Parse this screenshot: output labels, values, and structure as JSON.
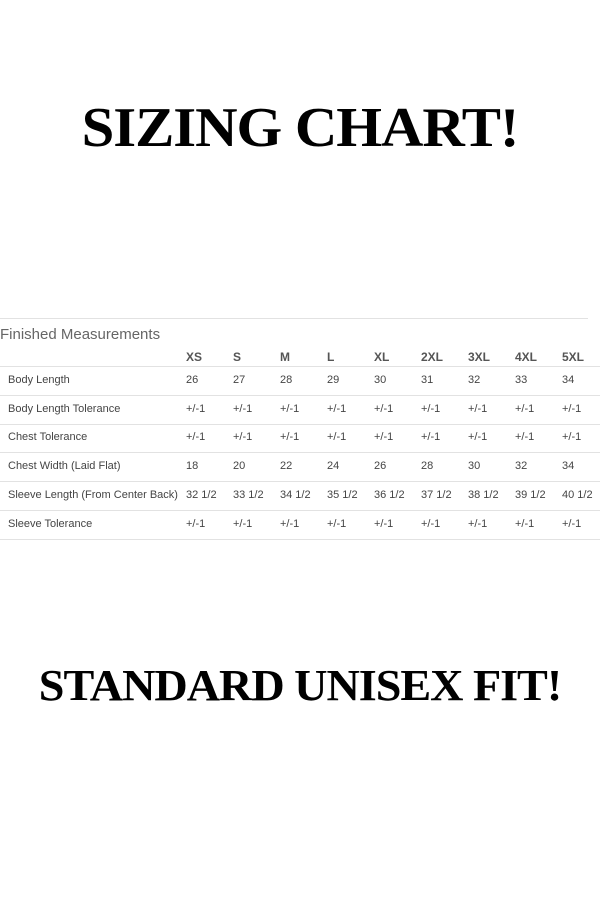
{
  "header": {
    "title": "SIZING CHART!"
  },
  "table": {
    "caption": "Finished Measurements",
    "columns": [
      "XS",
      "S",
      "M",
      "L",
      "XL",
      "2XL",
      "3XL",
      "4XL",
      "5XL"
    ],
    "rows": [
      {
        "label": "Body Length",
        "cells": [
          "26",
          "27",
          "28",
          "29",
          "30",
          "31",
          "32",
          "33",
          "34"
        ]
      },
      {
        "label": "Body Length Tolerance",
        "cells": [
          "+/-1",
          "+/-1",
          "+/-1",
          "+/-1",
          "+/-1",
          "+/-1",
          "+/-1",
          "+/-1",
          "+/-1"
        ]
      },
      {
        "label": "Chest Tolerance",
        "cells": [
          "+/-1",
          "+/-1",
          "+/-1",
          "+/-1",
          "+/-1",
          "+/-1",
          "+/-1",
          "+/-1",
          "+/-1"
        ]
      },
      {
        "label": "Chest Width (Laid Flat)",
        "cells": [
          "18",
          "20",
          "22",
          "24",
          "26",
          "28",
          "30",
          "32",
          "34"
        ]
      },
      {
        "label": "Sleeve Length (From Center Back)",
        "cells": [
          "32 1/2",
          "33 1/2",
          "34 1/2",
          "35 1/2",
          "36 1/2",
          "37 1/2",
          "38 1/2",
          "39 1/2",
          "40 1/2"
        ]
      },
      {
        "label": "Sleeve Tolerance",
        "cells": [
          "+/-1",
          "+/-1",
          "+/-1",
          "+/-1",
          "+/-1",
          "+/-1",
          "+/-1",
          "+/-1",
          "+/-1"
        ]
      }
    ]
  },
  "footer": {
    "text": "STANDARD UNISEX FIT!"
  }
}
